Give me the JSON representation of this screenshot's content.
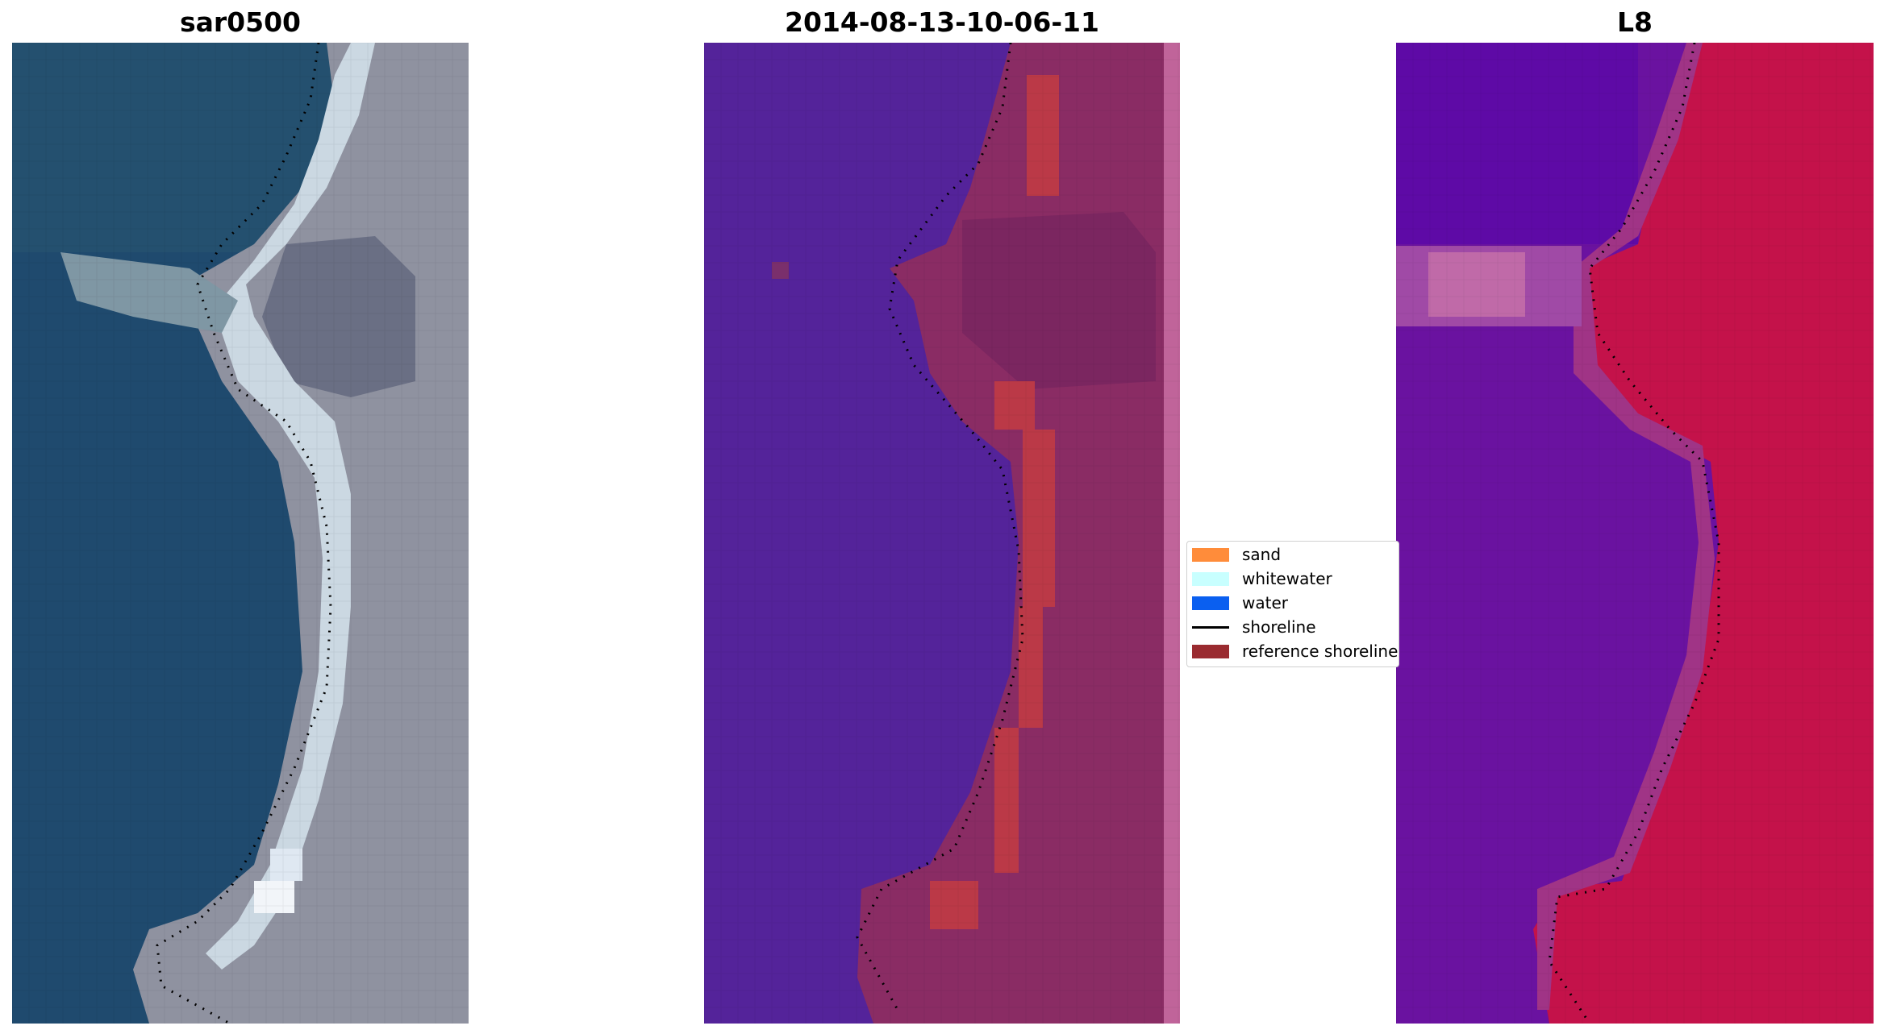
{
  "titles": {
    "left": "sar0500",
    "middle": "2014-08-13-10-06-11",
    "right": "L8"
  },
  "legend": {
    "items": [
      {
        "label": "sand",
        "color": "#ff8c3a"
      },
      {
        "label": "whitewater",
        "color": "#c8ffff"
      },
      {
        "label": "water",
        "color": "#0a5ff0"
      },
      {
        "label": "shoreline",
        "color": "#000000"
      },
      {
        "label": "reference shoreline",
        "color": "#9a2b30"
      }
    ]
  },
  "colors": {
    "water_rgb": "#1f4a6e",
    "land_rgb": "#9a9aa6",
    "beach_rgb": "#d5e2ea",
    "class_water": "#54239a",
    "class_land": "#8a2c64",
    "class_sand_overlay": "#bb3947",
    "ndwi_water": "#6a12a0",
    "ndwi_land": "#c4124a"
  }
}
